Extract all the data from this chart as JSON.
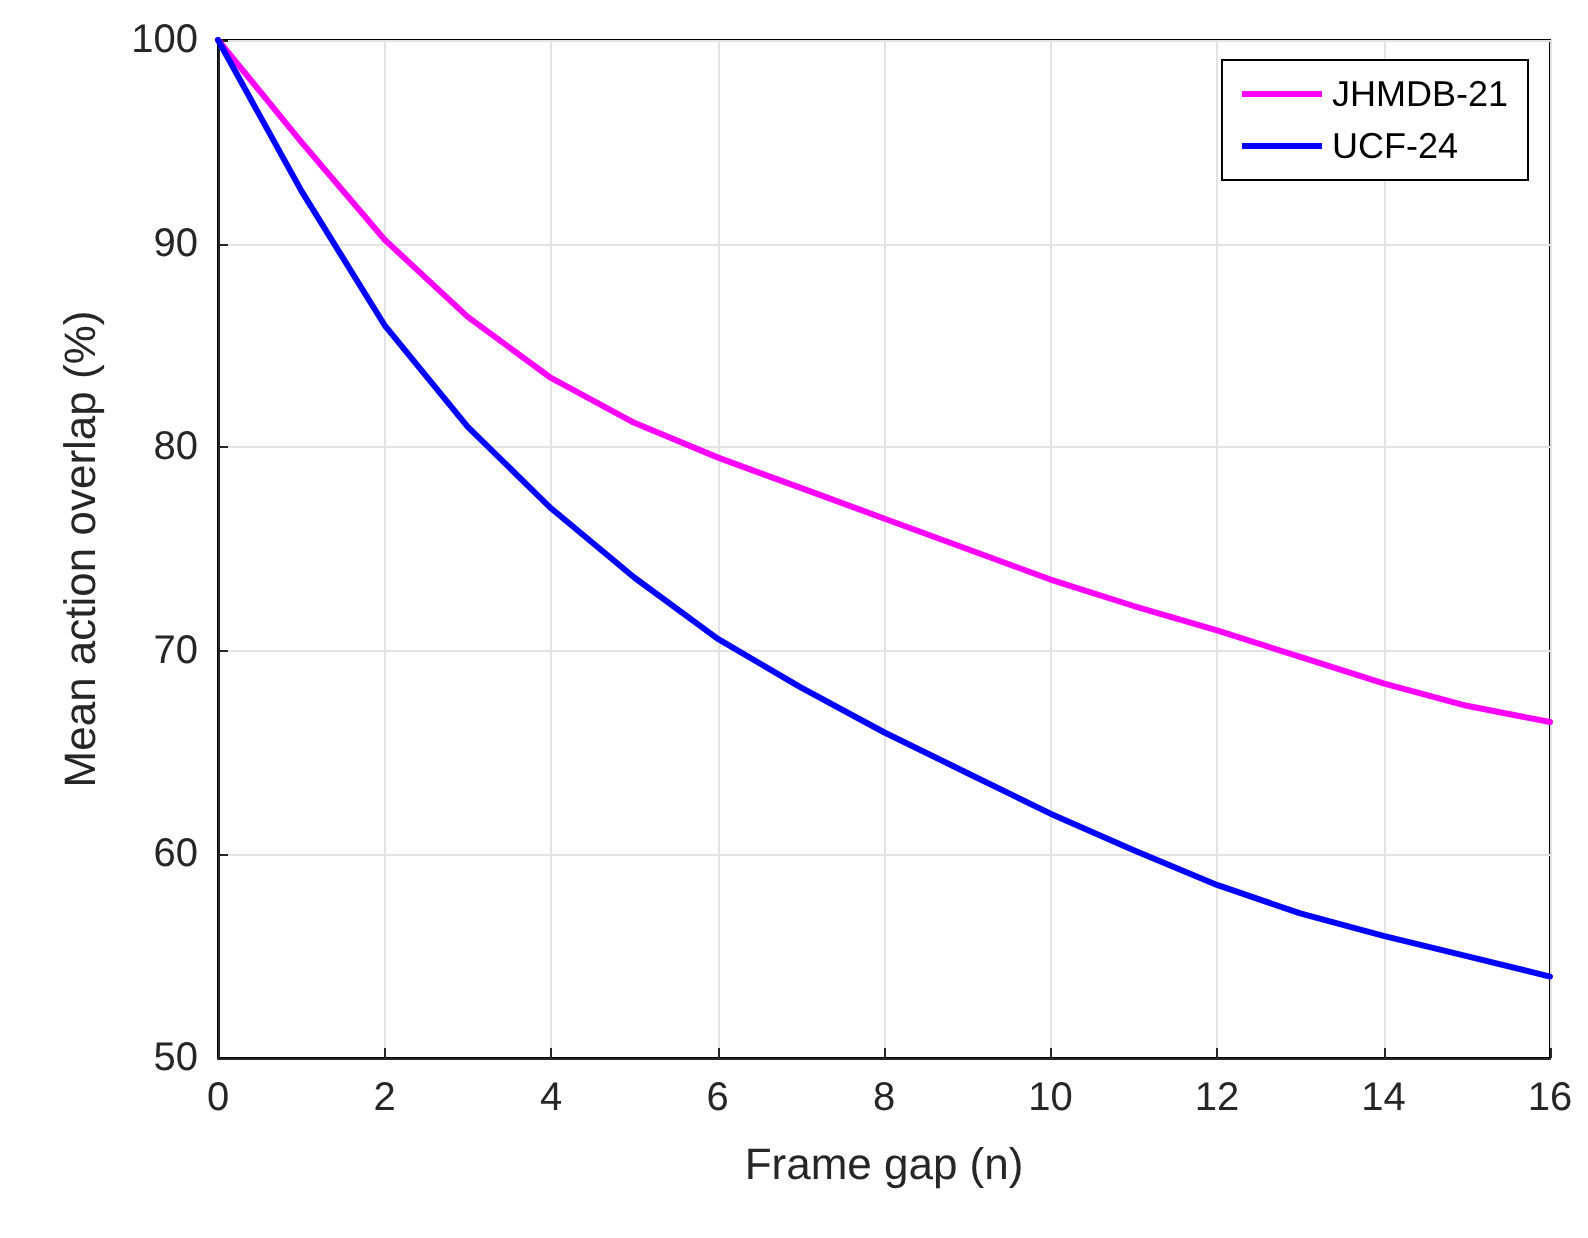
{
  "chart_data": {
    "type": "line",
    "xlabel": "Frame gap (n)",
    "ylabel": "Mean action overlap (%)",
    "x": [
      0,
      1,
      2,
      3,
      4,
      5,
      6,
      7,
      8,
      9,
      10,
      11,
      12,
      13,
      14,
      15,
      16
    ],
    "series": [
      {
        "name": "JHMDB-21",
        "color": "#ff00ff",
        "values": [
          100,
          95,
          90.2,
          86.4,
          83.4,
          81.2,
          79.5,
          78,
          76.5,
          75,
          73.5,
          72.2,
          71,
          69.7,
          68.4,
          67.3,
          66.5
        ]
      },
      {
        "name": "UCF-24",
        "color": "#0000ff",
        "values": [
          100,
          92.6,
          86,
          81,
          77,
          73.6,
          70.6,
          68.2,
          66,
          64,
          62,
          60.2,
          58.5,
          57.1,
          56,
          55,
          54
        ]
      }
    ],
    "xlim": [
      0,
      16
    ],
    "xticks": [
      0,
      2,
      4,
      6,
      8,
      10,
      12,
      14,
      16
    ],
    "ylim": [
      50,
      100
    ],
    "yticks": [
      50,
      60,
      70,
      80,
      90,
      100
    ],
    "grid": true,
    "legend": "top right",
    "marker": "none",
    "line_style": "solid"
  }
}
